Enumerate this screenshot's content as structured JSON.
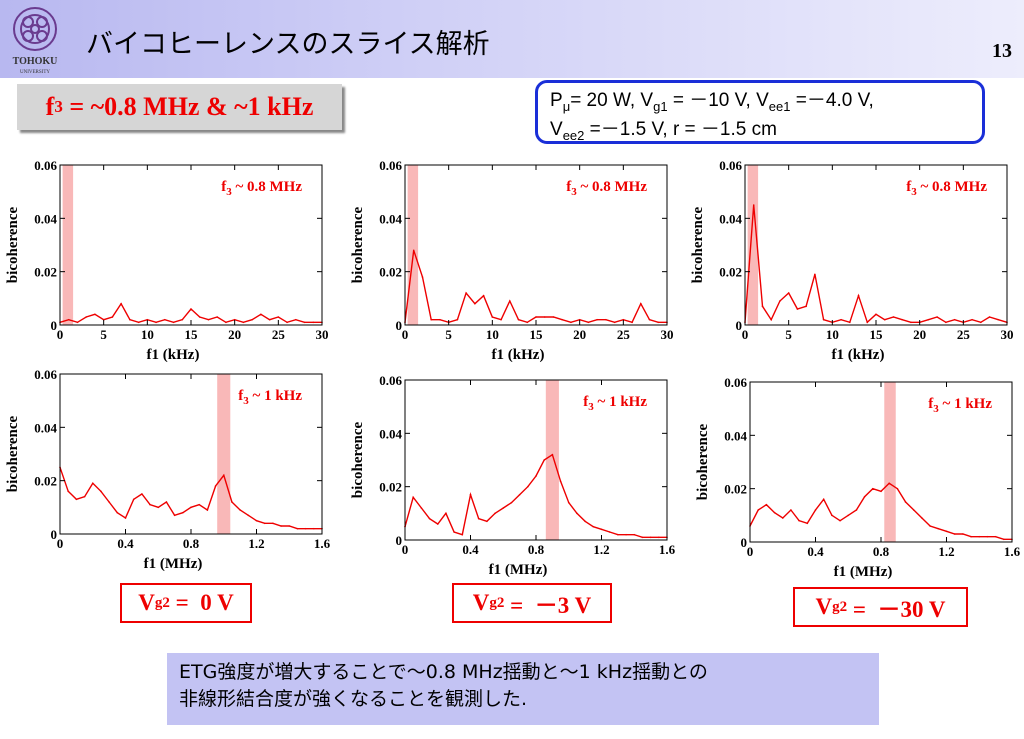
{
  "slide": {
    "title": "バイコヒーレンスのスライス解析",
    "page_number": "13",
    "logo_text": "TOHOKU",
    "logo_subtext": "UNIVERSITY"
  },
  "freq_box": {
    "text": "f3 = ~0.8 MHz & ~1 kHz",
    "base": "f",
    "sub": "3",
    "rest": " = ~0.8 MHz & ~1 kHz"
  },
  "params": {
    "line1": [
      {
        "t": "P"
      },
      {
        "t": "μ",
        "sub": true
      },
      {
        "t": "= 20 W, V"
      },
      {
        "t": "g1",
        "sub": true
      },
      {
        "t": " = －10 V, V"
      },
      {
        "t": "ee1",
        "sub": true
      },
      {
        "t": " =－4.0 V,"
      }
    ],
    "line2": [
      {
        "t": "V"
      },
      {
        "t": "ee2",
        "sub": true
      },
      {
        "t": " =－1.5 V, r = －1.5 cm"
      }
    ]
  },
  "vg_labels": [
    {
      "base": "V",
      "sub": "g2",
      "value": " =  0 V"
    },
    {
      "base": "V",
      "sub": "g2",
      "value": " =  －3 V"
    },
    {
      "base": "V",
      "sub": "g2",
      "value": " =  －30 V"
    }
  ],
  "conclusion": {
    "line1": "ETG強度が増大することで～0.8  MHz揺動と～1  kHz揺動との",
    "line2": "非線形結合度が強くなることを観測した."
  },
  "colors": {
    "series": "#ee0000",
    "band": "#f9b8b8",
    "box_border": "#1a2fd8",
    "conclusion_bg": "#c3c3f3"
  },
  "chart_data": [
    {
      "id": "top-left",
      "type": "line",
      "xlabel": "f1 (kHz)",
      "ylabel": "bicoherence",
      "xlim": [
        0,
        30
      ],
      "ylim": [
        0,
        0.06
      ],
      "xticks": [
        0,
        5,
        10,
        15,
        20,
        25,
        30
      ],
      "xtick_labels": [
        "0",
        "5",
        "10",
        "15",
        "20",
        "25",
        "30"
      ],
      "yticks": [
        0,
        0.02,
        0.04,
        0.06
      ],
      "ytick_labels": [
        "0",
        "0.02",
        "0.04",
        "0.06"
      ],
      "annotation": {
        "base": "f",
        "sub": "3",
        "rest": " ~ 0.8 MHz"
      },
      "band": [
        0.3,
        1.5
      ],
      "x": [
        0,
        1,
        2,
        3,
        4,
        5,
        6,
        7,
        8,
        9,
        10,
        11,
        12,
        13,
        14,
        15,
        16,
        17,
        18,
        19,
        20,
        21,
        22,
        23,
        24,
        25,
        26,
        27,
        28,
        29,
        30
      ],
      "y": [
        0.001,
        0.002,
        0.001,
        0.003,
        0.004,
        0.002,
        0.003,
        0.008,
        0.002,
        0.001,
        0.002,
        0.001,
        0.002,
        0.001,
        0.002,
        0.006,
        0.003,
        0.002,
        0.003,
        0.001,
        0.002,
        0.001,
        0.002,
        0.004,
        0.002,
        0.003,
        0.001,
        0.002,
        0.001,
        0.001,
        0.001
      ]
    },
    {
      "id": "top-middle",
      "type": "line",
      "xlabel": "f1 (kHz)",
      "ylabel": "bicoherence",
      "xlim": [
        0,
        30
      ],
      "ylim": [
        0,
        0.06
      ],
      "xticks": [
        0,
        5,
        10,
        15,
        20,
        25,
        30
      ],
      "xtick_labels": [
        "0",
        "5",
        "10",
        "15",
        "20",
        "25",
        "30"
      ],
      "yticks": [
        0,
        0.02,
        0.04,
        0.06
      ],
      "ytick_labels": [
        "0",
        "0.02",
        "0.04",
        "0.06"
      ],
      "annotation": {
        "base": "f",
        "sub": "3",
        "rest": " ~ 0.8 MHz"
      },
      "band": [
        0.3,
        1.5
      ],
      "x": [
        0,
        1,
        2,
        3,
        4,
        5,
        6,
        7,
        8,
        9,
        10,
        11,
        12,
        13,
        14,
        15,
        16,
        17,
        18,
        19,
        20,
        21,
        22,
        23,
        24,
        25,
        26,
        27,
        28,
        29,
        30
      ],
      "y": [
        0.001,
        0.028,
        0.018,
        0.002,
        0.002,
        0.001,
        0.002,
        0.012,
        0.008,
        0.011,
        0.003,
        0.002,
        0.009,
        0.002,
        0.001,
        0.003,
        0.003,
        0.003,
        0.002,
        0.001,
        0.002,
        0.001,
        0.002,
        0.002,
        0.001,
        0.002,
        0.001,
        0.008,
        0.002,
        0.001,
        0.001
      ]
    },
    {
      "id": "top-right",
      "type": "line",
      "xlabel": "f1 (kHz)",
      "ylabel": "bicoherence",
      "xlim": [
        0,
        30
      ],
      "ylim": [
        0,
        0.06
      ],
      "xticks": [
        0,
        5,
        10,
        15,
        20,
        25,
        30
      ],
      "xtick_labels": [
        "0",
        "5",
        "10",
        "15",
        "20",
        "25",
        "30"
      ],
      "yticks": [
        0,
        0.02,
        0.04,
        0.06
      ],
      "ytick_labels": [
        "0",
        "0.02",
        "0.04",
        "0.06"
      ],
      "annotation": {
        "base": "f",
        "sub": "3",
        "rest": " ~ 0.8 MHz"
      },
      "band": [
        0.3,
        1.5
      ],
      "x": [
        0,
        1,
        2,
        3,
        4,
        5,
        6,
        7,
        8,
        9,
        10,
        11,
        12,
        13,
        14,
        15,
        16,
        17,
        18,
        19,
        20,
        21,
        22,
        23,
        24,
        25,
        26,
        27,
        28,
        29,
        30
      ],
      "y": [
        0.001,
        0.045,
        0.007,
        0.002,
        0.009,
        0.012,
        0.006,
        0.007,
        0.019,
        0.002,
        0.001,
        0.002,
        0.001,
        0.011,
        0.001,
        0.004,
        0.002,
        0.003,
        0.002,
        0.001,
        0.001,
        0.002,
        0.003,
        0.001,
        0.002,
        0.001,
        0.002,
        0.001,
        0.003,
        0.002,
        0.001
      ]
    },
    {
      "id": "bottom-left",
      "type": "line",
      "xlabel": "f1 (MHz)",
      "ylabel": "bicoherence",
      "xlim": [
        0,
        1.6
      ],
      "ylim": [
        0,
        0.06
      ],
      "xticks": [
        0,
        0.4,
        0.8,
        1.2,
        1.6
      ],
      "xtick_labels": [
        "0",
        "0.4",
        "0.8",
        "1.2",
        "1.6"
      ],
      "yticks": [
        0,
        0.02,
        0.04,
        0.06
      ],
      "ytick_labels": [
        "0",
        "0.02",
        "0.04",
        "0.06"
      ],
      "annotation": {
        "base": "f",
        "sub": "3",
        "rest": " ~ 1 kHz"
      },
      "band": [
        0.96,
        1.04
      ],
      "x": [
        0,
        0.05,
        0.1,
        0.15,
        0.2,
        0.25,
        0.3,
        0.35,
        0.4,
        0.45,
        0.5,
        0.55,
        0.6,
        0.65,
        0.7,
        0.75,
        0.8,
        0.85,
        0.9,
        0.95,
        1.0,
        1.05,
        1.1,
        1.15,
        1.2,
        1.25,
        1.3,
        1.35,
        1.4,
        1.45,
        1.5,
        1.55,
        1.6
      ],
      "y": [
        0.025,
        0.016,
        0.013,
        0.014,
        0.019,
        0.016,
        0.012,
        0.008,
        0.006,
        0.013,
        0.015,
        0.011,
        0.01,
        0.012,
        0.007,
        0.008,
        0.01,
        0.011,
        0.009,
        0.018,
        0.022,
        0.012,
        0.009,
        0.007,
        0.005,
        0.004,
        0.004,
        0.003,
        0.003,
        0.002,
        0.002,
        0.002,
        0.002
      ]
    },
    {
      "id": "bottom-middle",
      "type": "line",
      "xlabel": "f1 (MHz)",
      "ylabel": "bicoherence",
      "xlim": [
        0,
        1.6
      ],
      "ylim": [
        0,
        0.06
      ],
      "xticks": [
        0,
        0.4,
        0.8,
        1.2,
        1.6
      ],
      "xtick_labels": [
        "0",
        "0.4",
        "0.8",
        "1.2",
        "1.6"
      ],
      "yticks": [
        0,
        0.02,
        0.04,
        0.06
      ],
      "ytick_labels": [
        "0",
        "0.02",
        "0.04",
        "0.06"
      ],
      "annotation": {
        "base": "f",
        "sub": "3",
        "rest": " ~ 1 kHz"
      },
      "band": [
        0.86,
        0.94
      ],
      "x": [
        0,
        0.05,
        0.1,
        0.15,
        0.2,
        0.25,
        0.3,
        0.35,
        0.4,
        0.45,
        0.5,
        0.55,
        0.6,
        0.65,
        0.7,
        0.75,
        0.8,
        0.85,
        0.9,
        0.95,
        1.0,
        1.05,
        1.1,
        1.15,
        1.2,
        1.25,
        1.3,
        1.35,
        1.4,
        1.45,
        1.5,
        1.55,
        1.6
      ],
      "y": [
        0.005,
        0.016,
        0.012,
        0.008,
        0.006,
        0.01,
        0.003,
        0.002,
        0.017,
        0.008,
        0.007,
        0.01,
        0.012,
        0.014,
        0.017,
        0.02,
        0.024,
        0.03,
        0.032,
        0.022,
        0.014,
        0.01,
        0.007,
        0.005,
        0.004,
        0.003,
        0.002,
        0.002,
        0.002,
        0.001,
        0.001,
        0.001,
        0.001
      ]
    },
    {
      "id": "bottom-right",
      "type": "line",
      "xlabel": "f1 (MHz)",
      "ylabel": "bicoherence",
      "xlim": [
        0,
        1.6
      ],
      "ylim": [
        0,
        0.06
      ],
      "xticks": [
        0,
        0.4,
        0.8,
        1.2,
        1.6
      ],
      "xtick_labels": [
        "0",
        "0.4",
        "0.8",
        "1.2",
        "1.6"
      ],
      "yticks": [
        0,
        0.02,
        0.04,
        0.06
      ],
      "ytick_labels": [
        "0",
        "0.02",
        "0.04",
        "0.06"
      ],
      "annotation": {
        "base": "f",
        "sub": "3",
        "rest": " ~ 1 kHz"
      },
      "band": [
        0.82,
        0.89
      ],
      "x": [
        0,
        0.05,
        0.1,
        0.15,
        0.2,
        0.25,
        0.3,
        0.35,
        0.4,
        0.45,
        0.5,
        0.55,
        0.6,
        0.65,
        0.7,
        0.75,
        0.8,
        0.85,
        0.9,
        0.95,
        1.0,
        1.05,
        1.1,
        1.15,
        1.2,
        1.25,
        1.3,
        1.35,
        1.4,
        1.45,
        1.5,
        1.55,
        1.6
      ],
      "y": [
        0.006,
        0.012,
        0.014,
        0.011,
        0.009,
        0.012,
        0.008,
        0.007,
        0.012,
        0.016,
        0.01,
        0.008,
        0.01,
        0.012,
        0.017,
        0.02,
        0.019,
        0.022,
        0.02,
        0.015,
        0.012,
        0.009,
        0.006,
        0.005,
        0.004,
        0.003,
        0.003,
        0.002,
        0.002,
        0.002,
        0.002,
        0.001,
        0.001
      ]
    }
  ]
}
